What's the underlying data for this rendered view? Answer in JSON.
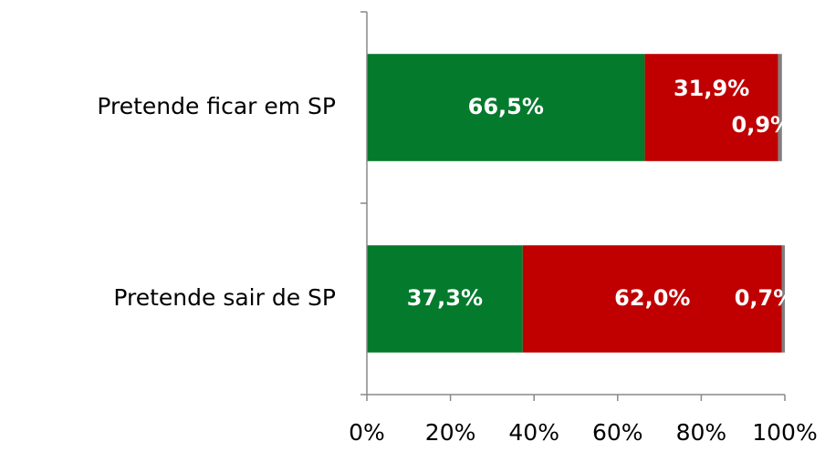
{
  "chart_data": {
    "type": "bar",
    "orientation": "horizontal",
    "stacked": true,
    "categories": [
      "Pretende ficar em SP",
      "Pretende sair de SP"
    ],
    "series": [
      {
        "color": "#047a2d",
        "values": [
          66.5,
          37.3
        ],
        "value_labels": [
          "66,5%",
          "37,3%"
        ]
      },
      {
        "color": "#c00000",
        "values": [
          31.9,
          62.0
        ],
        "value_labels": [
          "31,9%",
          "62,0%"
        ]
      },
      {
        "color": "#7f7f7f",
        "values": [
          0.9,
          0.7
        ],
        "value_labels": [
          "0,9%",
          "0,7%"
        ]
      }
    ],
    "xlim": [
      0,
      100
    ],
    "xticks": [
      {
        "value": 0,
        "label": "0%"
      },
      {
        "value": 20,
        "label": "20%"
      },
      {
        "value": 40,
        "label": "40%"
      },
      {
        "value": 60,
        "label": "60%"
      },
      {
        "value": 80,
        "label": "80%"
      },
      {
        "value": 100,
        "label": "100%"
      }
    ]
  }
}
